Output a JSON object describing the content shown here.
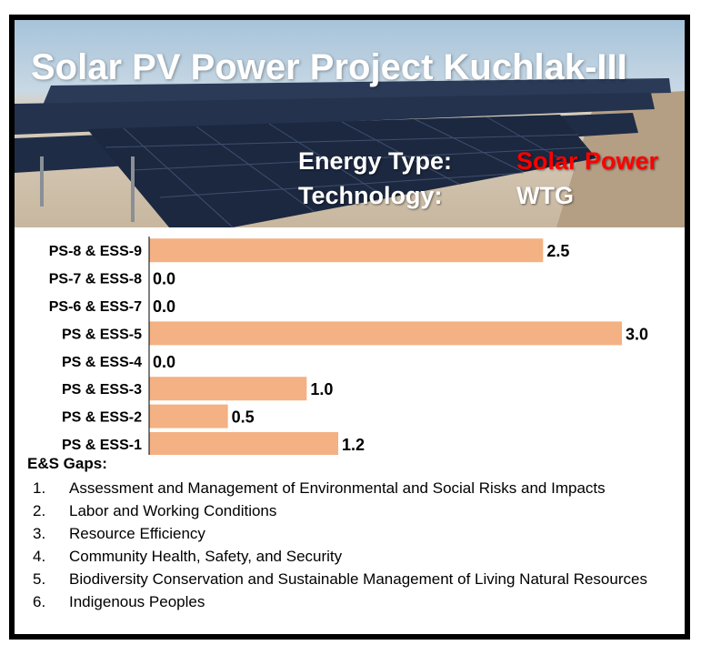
{
  "banner": {
    "title": "Solar PV Power Project Kuchlak-III",
    "energy_type_label": "Energy Type:",
    "energy_type_value": "Solar Power",
    "technology_label": "Technology:",
    "technology_value": "WTG"
  },
  "colors": {
    "bar": "#f4b183",
    "energy_type_value": "#ff0000",
    "technology_value": "#ffffff",
    "axis": "#000000",
    "frame": "#000000"
  },
  "chart_data": {
    "type": "bar",
    "orientation": "horizontal",
    "categories": [
      "PS-8 & ESS-9",
      "PS-7 & ESS-8",
      "PS-6 & ESS-7",
      "PS & ESS-5",
      "PS & ESS-4",
      "PS & ESS-3",
      "PS & ESS-2",
      "PS & ESS-1"
    ],
    "values": [
      2.5,
      0.0,
      0.0,
      3.0,
      0.0,
      1.0,
      0.5,
      1.2
    ],
    "value_labels": [
      "2.5",
      "0.0",
      "0.0",
      "3.0",
      "0.0",
      "1.0",
      "0.5",
      "1.2"
    ],
    "xlim": [
      0,
      3.0
    ],
    "grid": false,
    "legend": "none",
    "bar_color": "#f4b183"
  },
  "gaps": {
    "title": "E&S Gaps:",
    "items": [
      {
        "num": "1.",
        "text": "Assessment and Management of Environmental and Social Risks and Impacts"
      },
      {
        "num": "2.",
        "text": "Labor and Working Conditions"
      },
      {
        "num": "3.",
        "text": "Resource Efficiency"
      },
      {
        "num": "4.",
        "text": "Community Health, Safety, and Security"
      },
      {
        "num": "5.",
        "text": "Biodiversity Conservation and Sustainable Management of Living Natural Resources"
      },
      {
        "num": "6.",
        "text": "Indigenous Peoples"
      }
    ]
  }
}
